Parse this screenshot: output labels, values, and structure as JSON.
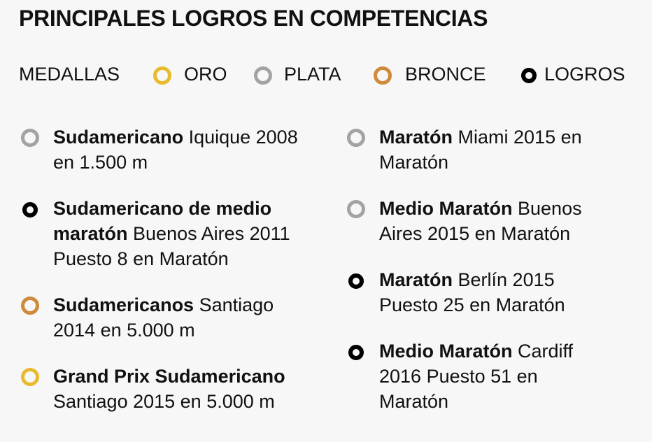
{
  "title": "PRINCIPALES LOGROS EN COMPETENCIAS",
  "legend": {
    "label": "MEDALLAS",
    "items": [
      {
        "text": "ORO",
        "color": "#e8bb2e"
      },
      {
        "text": "PLATA",
        "color": "#a3a3a3"
      },
      {
        "text": "BRONCE",
        "color": "#cf8a3c"
      },
      {
        "text": "LOGROS",
        "color": "#000000"
      }
    ]
  },
  "achievements_left": [
    {
      "type": "plata",
      "bold": "Sudamericano",
      "rest": " Iquique 2008 en 1.500 m"
    },
    {
      "type": "logro",
      "bold": "Sudamericano de medio maratón",
      "rest": " Buenos Aires 2011 Puesto 8 en Maratón"
    },
    {
      "type": "bronce",
      "bold": "Sudamericanos",
      "rest": " Santiago 2014 en 5.000 m"
    },
    {
      "type": "oro",
      "bold": "Grand Prix Sudamericano",
      "rest": " Santiago 2015 en 5.000 m"
    }
  ],
  "achievements_right": [
    {
      "type": "plata",
      "bold": "Maratón",
      "rest": " Miami 2015 en Maratón"
    },
    {
      "type": "plata",
      "bold": "Medio Maratón",
      "rest": " Buenos Aires 2015 en Maratón"
    },
    {
      "type": "logro",
      "bold": "Maratón",
      "rest": " Berlín 2015 Puesto 25 en Maratón"
    },
    {
      "type": "logro",
      "bold": "Medio Maratón",
      "rest": " Cardiff 2016 Puesto 51 en Maratón"
    }
  ]
}
